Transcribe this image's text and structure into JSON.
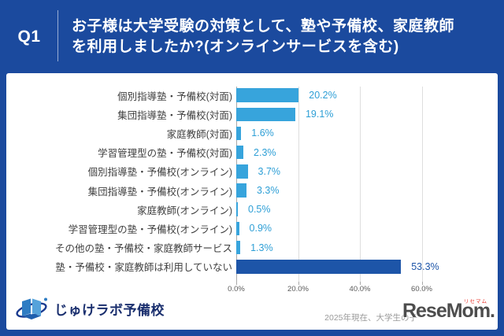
{
  "header": {
    "question_number": "Q1",
    "question_line1": "お子様は大学受験の対策として、塾や予備校、家庭教師",
    "question_line2": "を利用しましたか?(オンラインサービスを含む)"
  },
  "chart_data": {
    "type": "bar",
    "orientation": "horizontal",
    "title": "お子様は大学受験の対策として、塾や予備校、家庭教師を利用しましたか?(オンラインサービスを含む)",
    "categories": [
      "個別指導塾・予備校(対面)",
      "集団指導塾・予備校(対面)",
      "家庭教師(対面)",
      "学習管理型の塾・予備校(対面)",
      "個別指導塾・予備校(オンライン)",
      "集団指導塾・予備校(オンライン)",
      "家庭教師(オンライン)",
      "学習管理型の塾・予備校(オンライン)",
      "その他の塾・予備校・家庭教師サービス",
      "塾・予備校・家庭教師は利用していない"
    ],
    "values": [
      20.2,
      19.1,
      1.6,
      2.3,
      3.7,
      3.3,
      0.5,
      0.9,
      1.3,
      53.3
    ],
    "value_labels": [
      "20.2%",
      "19.1%",
      "1.6%",
      "2.3%",
      "3.7%",
      "3.3%",
      "0.5%",
      "0.9%",
      "1.3%",
      "53.3%"
    ],
    "x_ticks": [
      "0.0%",
      "20.0%",
      "40.0%",
      "60.0%"
    ],
    "xlim": [
      0,
      60
    ],
    "grid": "vertical",
    "legend": false,
    "bar_color": "#37A4DC",
    "highlight_color": "#1D55A8",
    "highlight_index": 9,
    "value_label_color": "#2E9FD6",
    "highlight_value_label_color": "#1D55A8"
  },
  "footer": {
    "logo_text": "じゅけラボ予備校",
    "note_text": "2025年現在、大学生の子",
    "resemom_wordmark": "ReseMom.",
    "resemom_furigana": "リセマム"
  },
  "colors": {
    "frame_blue": "#1B4A9E",
    "panel_white": "#ffffff",
    "gridline": "#DEDEDE",
    "axis_line": "#A9A9A9"
  }
}
